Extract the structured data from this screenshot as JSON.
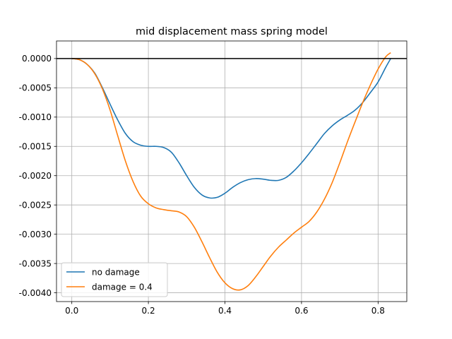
{
  "chart_data": {
    "type": "line",
    "title": "mid displacement mass spring model",
    "xlabel": "",
    "ylabel": "",
    "xlim": [
      -0.04,
      0.875
    ],
    "ylim": [
      -0.00415,
      0.0003
    ],
    "x_ticks": [
      0.0,
      0.2,
      0.4,
      0.6,
      0.8
    ],
    "x_tick_labels": [
      "0.0",
      "0.2",
      "0.4",
      "0.6",
      "0.8"
    ],
    "y_ticks": [
      0.0,
      -0.0005,
      -0.001,
      -0.0015,
      -0.002,
      -0.0025,
      -0.003,
      -0.0035,
      -0.004
    ],
    "y_tick_labels": [
      "0.0000",
      "-0.0005",
      "-0.0010",
      "-0.0015",
      "-0.0020",
      "-0.0025",
      "-0.0030",
      "-0.0035",
      "-0.0040"
    ],
    "grid": true,
    "reference_line": {
      "y": 0.0,
      "color": "#000000"
    },
    "legend_position": "lower-left",
    "series": [
      {
        "name": "no damage",
        "color": "#1f77b4",
        "x": [
          0.0,
          0.02,
          0.04,
          0.06,
          0.08,
          0.1,
          0.12,
          0.14,
          0.16,
          0.18,
          0.2,
          0.22,
          0.24,
          0.26,
          0.28,
          0.3,
          0.32,
          0.34,
          0.36,
          0.38,
          0.4,
          0.42,
          0.44,
          0.46,
          0.48,
          0.5,
          0.52,
          0.54,
          0.56,
          0.58,
          0.6,
          0.62,
          0.64,
          0.66,
          0.68,
          0.7,
          0.72,
          0.74,
          0.76,
          0.78,
          0.8,
          0.82,
          0.833
        ],
        "y": [
          0.0,
          -2e-05,
          -0.0001,
          -0.00025,
          -0.0005,
          -0.00078,
          -0.00105,
          -0.00128,
          -0.00142,
          -0.00148,
          -0.0015,
          -0.0015,
          -0.00152,
          -0.0016,
          -0.00178,
          -0.002,
          -0.0022,
          -0.00233,
          -0.00238,
          -0.00237,
          -0.0023,
          -0.0022,
          -0.00212,
          -0.00207,
          -0.00205,
          -0.00206,
          -0.00208,
          -0.00208,
          -0.00203,
          -0.00192,
          -0.00178,
          -0.00162,
          -0.00145,
          -0.00128,
          -0.00115,
          -0.00105,
          -0.00097,
          -0.00088,
          -0.00075,
          -0.00058,
          -0.0004,
          -0.00015,
          0.0
        ]
      },
      {
        "name": "damage = 0.4",
        "color": "#ff7f0e",
        "x": [
          0.0,
          0.02,
          0.04,
          0.06,
          0.08,
          0.1,
          0.12,
          0.14,
          0.16,
          0.18,
          0.2,
          0.22,
          0.24,
          0.26,
          0.28,
          0.3,
          0.32,
          0.34,
          0.36,
          0.38,
          0.4,
          0.42,
          0.44,
          0.46,
          0.48,
          0.5,
          0.52,
          0.54,
          0.56,
          0.58,
          0.6,
          0.62,
          0.64,
          0.66,
          0.68,
          0.7,
          0.72,
          0.74,
          0.76,
          0.78,
          0.8,
          0.82,
          0.833
        ],
        "y": [
          0.0,
          -2e-05,
          -0.0001,
          -0.00026,
          -0.00052,
          -0.00088,
          -0.00132,
          -0.00175,
          -0.0021,
          -0.00235,
          -0.00248,
          -0.00255,
          -0.00258,
          -0.0026,
          -0.00262,
          -0.0027,
          -0.00288,
          -0.00313,
          -0.0034,
          -0.00365,
          -0.00383,
          -0.00393,
          -0.00395,
          -0.00388,
          -0.00373,
          -0.00355,
          -0.00337,
          -0.00322,
          -0.0031,
          -0.00298,
          -0.00288,
          -0.00278,
          -0.00262,
          -0.0024,
          -0.00212,
          -0.00178,
          -0.00142,
          -0.00108,
          -0.00075,
          -0.00045,
          -0.00018,
          3e-05,
          0.0001
        ]
      }
    ]
  }
}
